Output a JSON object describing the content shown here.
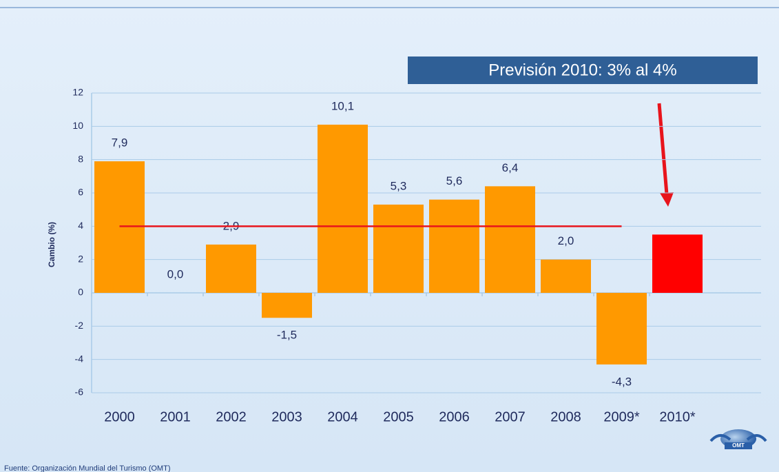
{
  "chart_data": {
    "type": "bar",
    "annotation": "Previsión 2010: 3% al 4%",
    "ylabel": "Cambio (%)",
    "source": "Fuente: Organización Mundial del Turismo (OMT)",
    "logo": "OMT",
    "categories": [
      "2000",
      "2001",
      "2002",
      "2003",
      "2004",
      "2005",
      "2006",
      "2007",
      "2008",
      "2009*",
      "2010*"
    ],
    "values": [
      7.9,
      0.0,
      2.9,
      -1.5,
      10.1,
      5.3,
      5.6,
      6.4,
      2.0,
      -4.3,
      3.5
    ],
    "value_labels": [
      "7,9",
      "0,0",
      "2,9",
      "-1,5",
      "10,1",
      "5,3",
      "5,6",
      "6,4",
      "2,0",
      "-4,3",
      null
    ],
    "colors": [
      "#ff9900",
      "#ff9900",
      "#ff9900",
      "#ff9900",
      "#ff9900",
      "#ff9900",
      "#ff9900",
      "#ff9900",
      "#ff9900",
      "#ff9900",
      "#ff0000"
    ],
    "reference_line": {
      "value": 4,
      "color": "#e8141c"
    },
    "ylim": [
      -6,
      12
    ],
    "yticks": [
      -6,
      -4,
      -2,
      0,
      2,
      4,
      6,
      8,
      10,
      12
    ],
    "grid": true
  }
}
